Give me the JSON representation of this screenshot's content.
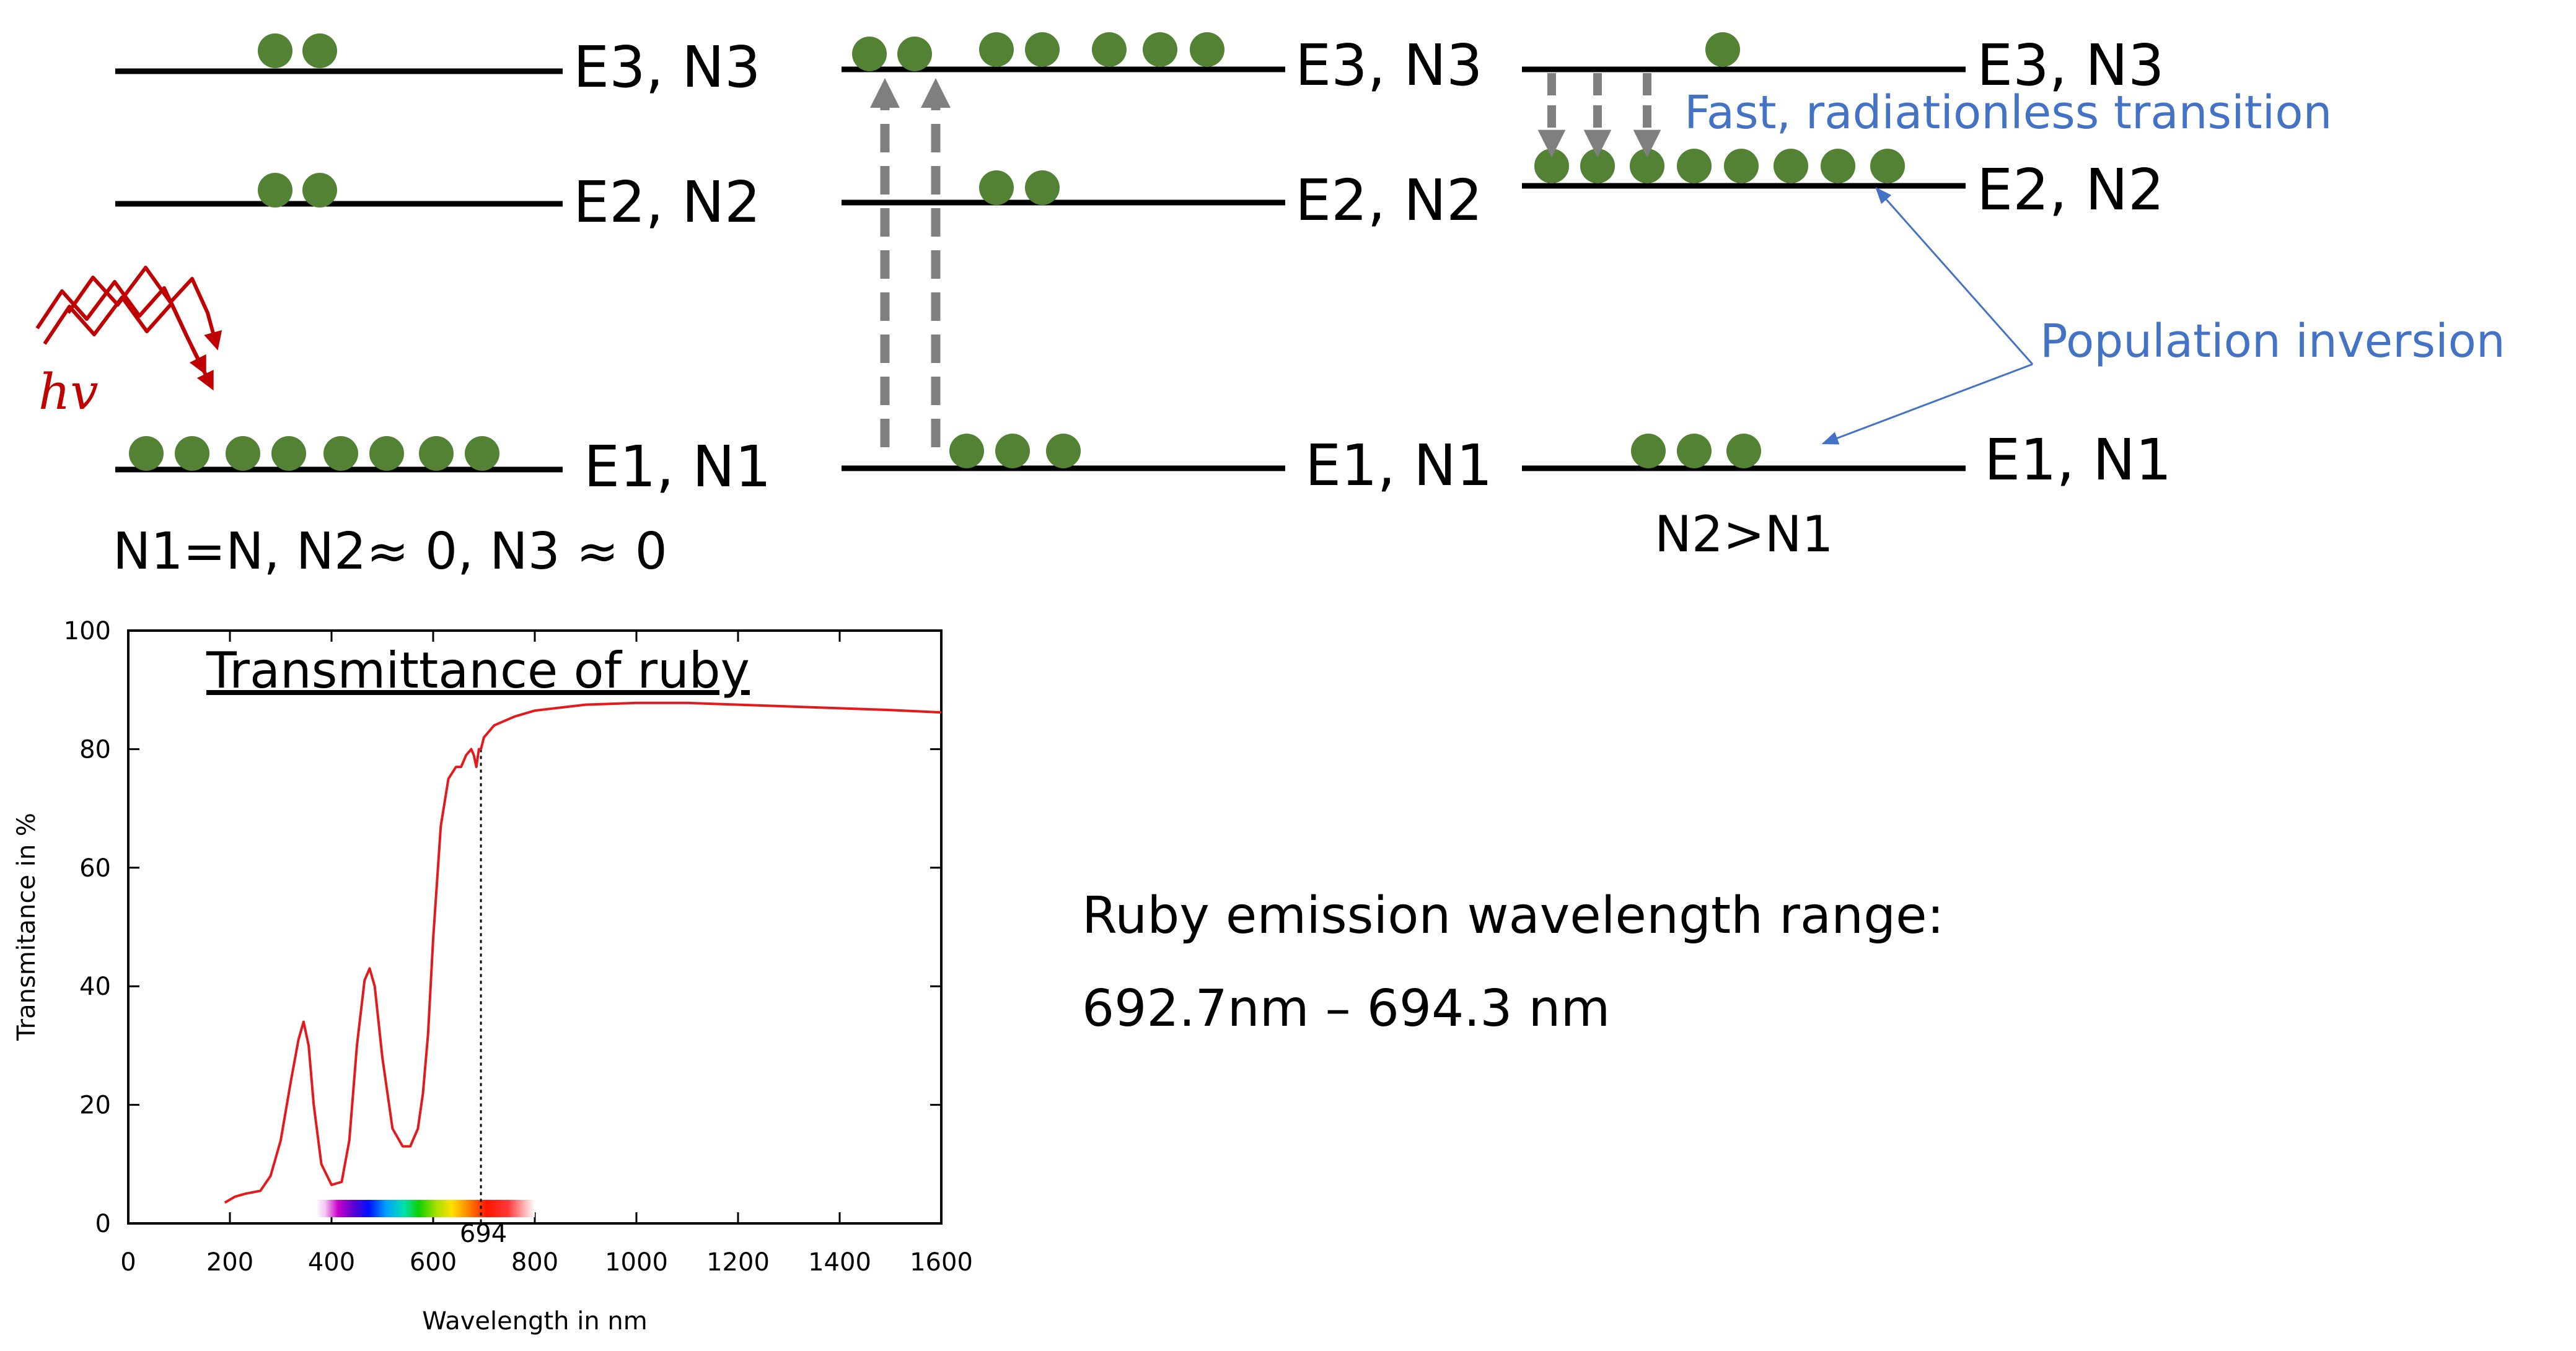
{
  "colors": {
    "atom": "#548235",
    "level_line": "#000000",
    "pump_arrow": "#7f7f7f",
    "annotation_blue": "#4472c4",
    "photon": "#c00000",
    "curve": "#e31a1c"
  },
  "icons": {
    "photon": "wavy-photon-arrows-icon",
    "atom": "green-circle-atom-icon"
  },
  "diagram": {
    "panels": [
      {
        "levels": [
          {
            "label": "E3, N3",
            "atoms": 2
          },
          {
            "label": "E2, N2",
            "atoms": 2
          },
          {
            "label": "E1, N1",
            "atoms": 8
          }
        ],
        "photon_label": "hv",
        "caption": "N1=N, N2≈ 0, N3 ≈ 0"
      },
      {
        "levels": [
          {
            "label": "E3, N3",
            "atoms": 7
          },
          {
            "label": "E2, N2",
            "atoms": 2
          },
          {
            "label": "E1, N1",
            "atoms": 3
          }
        ],
        "pump_arrows": 2
      },
      {
        "levels": [
          {
            "label": "E3, N3",
            "atoms": 1
          },
          {
            "label": "E2, N2",
            "atoms": 8
          },
          {
            "label": "E1, N1",
            "atoms": 3
          }
        ],
        "decay_arrows": 3,
        "transition_label": "Fast, radiationless transition",
        "inversion_label": "Population inversion",
        "caption": "N2>N1"
      }
    ]
  },
  "chart_data": {
    "type": "line",
    "title": "Transmittance of ruby",
    "xlabel": "Wavelength in nm",
    "ylabel": "Transmitance in %",
    "xlim": [
      0,
      1600
    ],
    "ylim": [
      0,
      100
    ],
    "xticks": [
      0,
      200,
      400,
      600,
      800,
      1000,
      1200,
      1400,
      1600
    ],
    "yticks": [
      0,
      20,
      40,
      60,
      80,
      100
    ],
    "marker_line": {
      "x": 694,
      "label": "694"
    },
    "visible_spectrum_band": [
      370,
      800
    ],
    "series": [
      {
        "x": [
          190,
          210,
          230,
          260,
          280,
          300,
          320,
          335,
          345,
          355,
          365,
          380,
          400,
          420,
          435,
          450,
          465,
          475,
          485,
          500,
          520,
          540,
          555,
          570,
          580,
          590,
          600,
          615,
          630,
          645,
          655,
          665,
          675,
          680,
          685,
          690,
          694,
          700,
          720,
          760,
          800,
          850,
          900,
          1000,
          1100,
          1200,
          1300,
          1400,
          1500,
          1600
        ],
        "y": [
          3.5,
          4.5,
          5,
          5.5,
          8,
          14,
          24,
          31,
          34,
          30,
          20,
          10,
          6.5,
          7,
          14,
          30,
          41,
          43,
          40,
          28,
          16,
          13,
          13,
          16,
          22,
          32,
          48,
          67,
          75,
          77,
          77,
          79,
          80,
          79,
          77,
          80,
          80,
          82,
          84,
          85.5,
          86.5,
          87,
          87.5,
          87.8,
          87.8,
          87.5,
          87.2,
          86.9,
          86.6,
          86.2
        ]
      }
    ]
  },
  "notes": {
    "range_title": "Ruby emission wavelength range:",
    "range_value": "692.7nm – 694.3 nm"
  }
}
